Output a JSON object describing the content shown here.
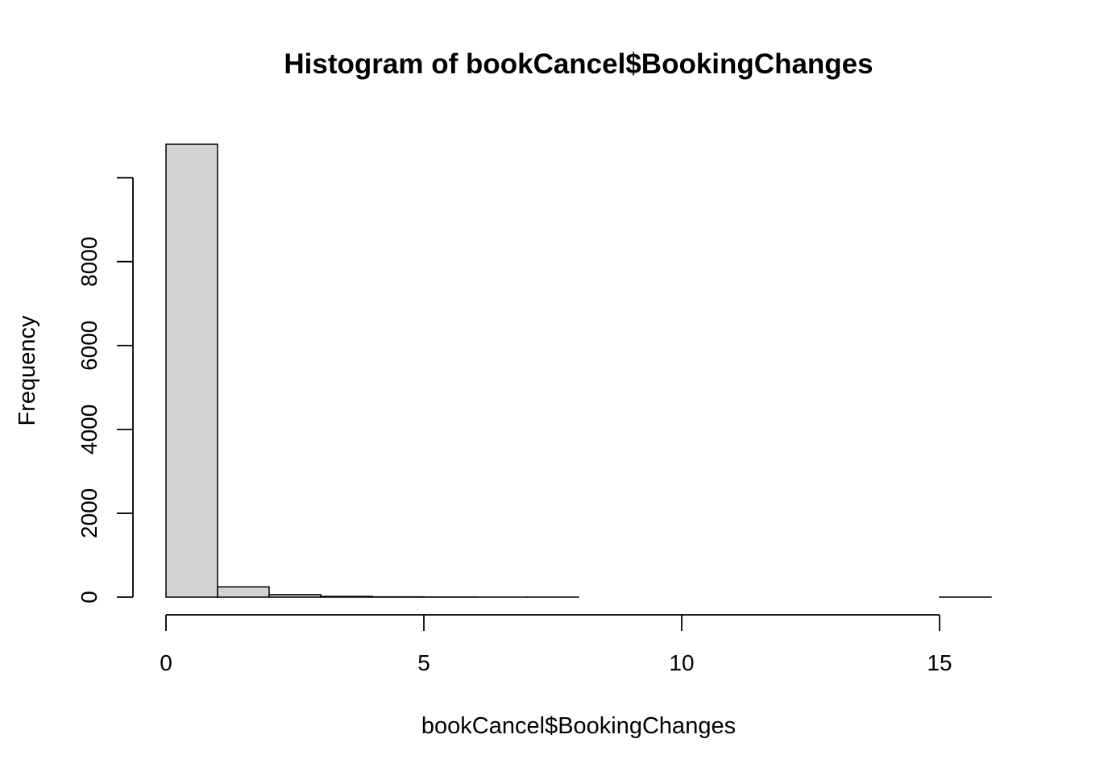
{
  "chart_data": {
    "type": "bar",
    "subtype": "histogram",
    "title": "Histogram of bookCancel$BookingChanges",
    "xlabel": "bookCancel$BookingChanges",
    "ylabel": "Frequency",
    "bins": [
      {
        "x0": 0,
        "x1": 1,
        "count": 10800
      },
      {
        "x0": 1,
        "x1": 2,
        "count": 245
      },
      {
        "x0": 2,
        "x1": 3,
        "count": 60
      },
      {
        "x0": 3,
        "x1": 4,
        "count": 18
      },
      {
        "x0": 4,
        "x1": 5,
        "count": 7
      },
      {
        "x0": 5,
        "x1": 6,
        "count": 3
      },
      {
        "x0": 6,
        "x1": 7,
        "count": 1
      },
      {
        "x0": 7,
        "x1": 8,
        "count": 1
      },
      {
        "x0": 8,
        "x1": 9,
        "count": 0
      },
      {
        "x0": 9,
        "x1": 10,
        "count": 0
      },
      {
        "x0": 10,
        "x1": 11,
        "count": 0
      },
      {
        "x0": 11,
        "x1": 12,
        "count": 0
      },
      {
        "x0": 12,
        "x1": 13,
        "count": 0
      },
      {
        "x0": 13,
        "x1": 14,
        "count": 0
      },
      {
        "x0": 14,
        "x1": 15,
        "count": 0
      },
      {
        "x0": 15,
        "x1": 16,
        "count": 1
      }
    ],
    "xlim": [
      0,
      16
    ],
    "ylim": [
      0,
      10800
    ],
    "x_ticks": [
      0,
      5,
      10,
      15
    ],
    "y_ticks": [
      0,
      2000,
      4000,
      6000,
      8000
    ],
    "grid": false,
    "bar_fill": "#d3d3d3",
    "bar_stroke": "#000000"
  }
}
